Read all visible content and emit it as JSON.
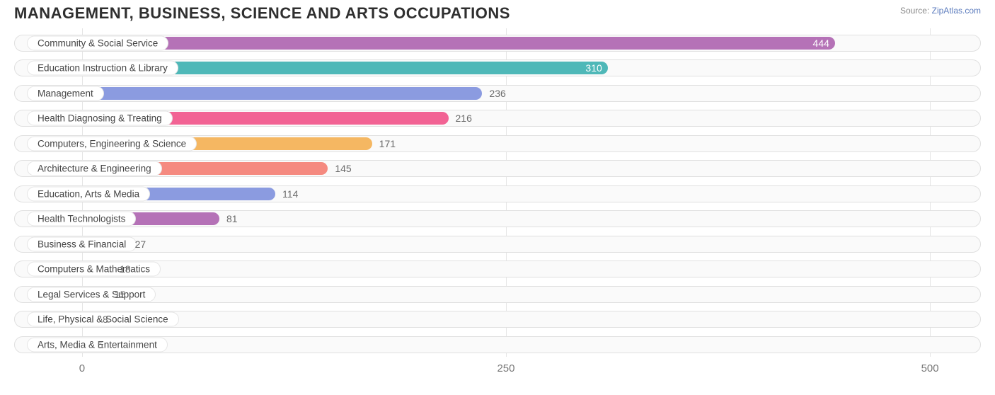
{
  "header": {
    "title": "MANAGEMENT, BUSINESS, SCIENCE AND ARTS OCCUPATIONS",
    "source_prefix": "Source: ",
    "source_link": "ZipAtlas.com"
  },
  "chart": {
    "type": "bar-horizontal",
    "background_color": "#ffffff",
    "grid_color": "#e5e5e5",
    "track_bg": "#fafafa",
    "track_border": "#e0e0e0",
    "label_font_size": 13.5,
    "value_font_size": 14,
    "x_axis": {
      "min": -40,
      "max": 530,
      "ticks": [
        0,
        250,
        500
      ],
      "tick_labels": [
        "0",
        "250",
        "500"
      ],
      "tick_color": "#777",
      "tick_fontsize": 15
    },
    "data": [
      {
        "label": "Community & Social Service",
        "value": 444,
        "color": "#b572b7",
        "value_color": "#ffffff",
        "value_inside": true
      },
      {
        "label": "Education Instruction & Library",
        "value": 310,
        "color": "#4fb8b8",
        "value_color": "#ffffff",
        "value_inside": true
      },
      {
        "label": "Management",
        "value": 236,
        "color": "#8b9be0",
        "value_color": "#6b6b6b",
        "value_inside": false
      },
      {
        "label": "Health Diagnosing & Treating",
        "value": 216,
        "color": "#f26394",
        "value_color": "#6b6b6b",
        "value_inside": false
      },
      {
        "label": "Computers, Engineering & Science",
        "value": 171,
        "color": "#f5b762",
        "value_color": "#6b6b6b",
        "value_inside": false
      },
      {
        "label": "Architecture & Engineering",
        "value": 145,
        "color": "#f58a80",
        "value_color": "#6b6b6b",
        "value_inside": false
      },
      {
        "label": "Education, Arts & Media",
        "value": 114,
        "color": "#8b9be0",
        "value_color": "#6b6b6b",
        "value_inside": false
      },
      {
        "label": "Health Technologists",
        "value": 81,
        "color": "#b572b7",
        "value_color": "#6b6b6b",
        "value_inside": false
      },
      {
        "label": "Business & Financial",
        "value": 27,
        "color": "#67c9c9",
        "value_color": "#6b6b6b",
        "value_inside": false
      },
      {
        "label": "Computers & Mathematics",
        "value": 18,
        "color": "#8b9be0",
        "value_color": "#6b6b6b",
        "value_inside": false
      },
      {
        "label": "Legal Services & Support",
        "value": 15,
        "color": "#f590b2",
        "value_color": "#6b6b6b",
        "value_inside": false
      },
      {
        "label": "Life, Physical & Social Science",
        "value": 8,
        "color": "#f5b762",
        "value_color": "#6b6b6b",
        "value_inside": false
      },
      {
        "label": "Arts, Media & Entertainment",
        "value": 5,
        "color": "#f58a80",
        "value_color": "#6b6b6b",
        "value_inside": false
      }
    ]
  }
}
